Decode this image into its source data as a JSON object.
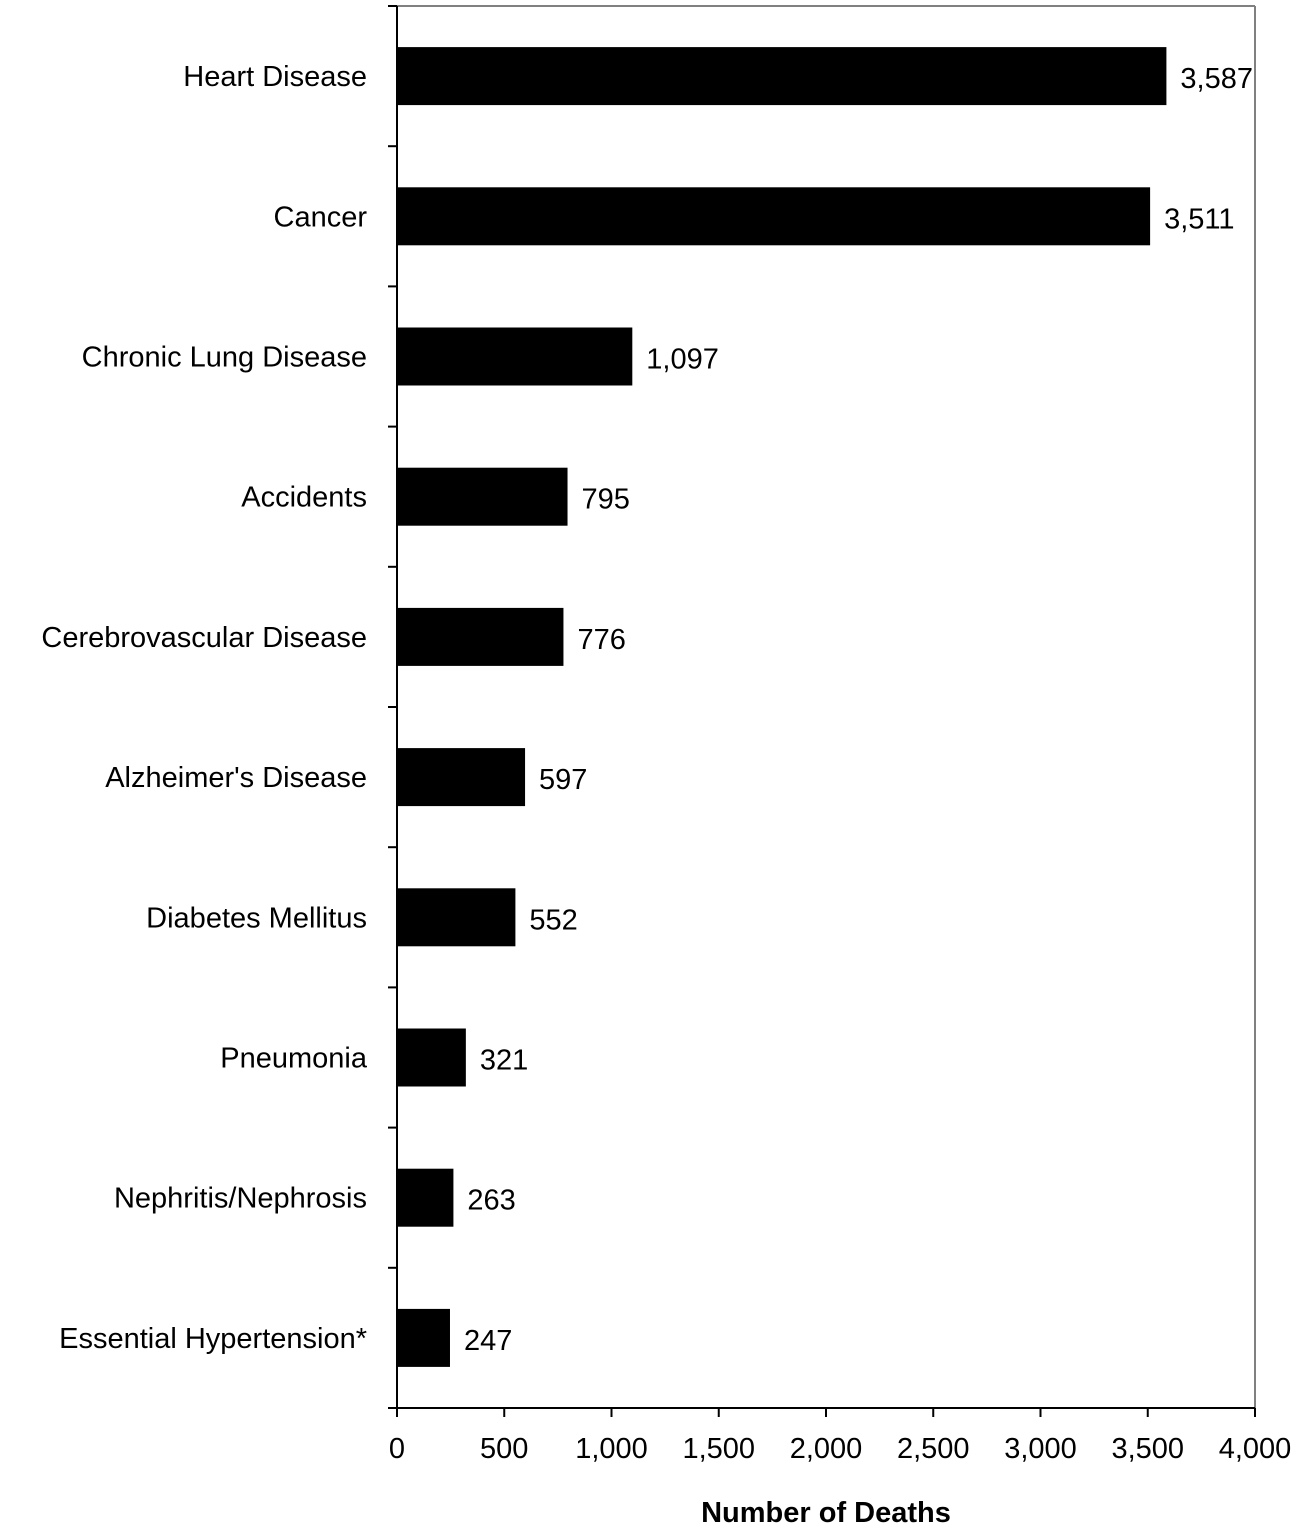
{
  "chart_data": {
    "type": "bar",
    "orientation": "horizontal",
    "title": "",
    "xlabel": "Number of Deaths",
    "ylabel": "",
    "categories": [
      "Heart Disease",
      "Cancer",
      "Chronic Lung Disease",
      "Accidents",
      "Cerebrovascular Disease",
      "Alzheimer's Disease",
      "Diabetes Mellitus",
      "Pneumonia",
      "Nephritis/Nephrosis",
      "Essential Hypertension*"
    ],
    "values": [
      3587,
      3511,
      1097,
      795,
      776,
      597,
      552,
      321,
      263,
      247
    ],
    "value_labels": [
      "3,587",
      "3,511",
      "1,097",
      "795",
      "776",
      "597",
      "552",
      "321",
      "263",
      "247"
    ],
    "xlim": [
      0,
      4000
    ],
    "xticks": [
      0,
      500,
      1000,
      1500,
      2000,
      2500,
      3000,
      3500,
      4000
    ],
    "xtick_labels": [
      "0",
      "500",
      "1,000",
      "1,500",
      "2,000",
      "2,500",
      "3,000",
      "3,500",
      "4,000"
    ],
    "grid": false,
    "legend": "none",
    "colors": {
      "bar": "#000000",
      "plot_frame": "#808080",
      "axis": "#000000"
    }
  }
}
